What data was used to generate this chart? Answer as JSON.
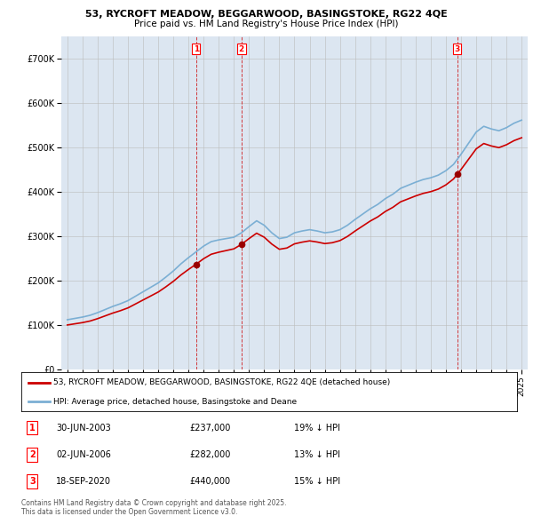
{
  "title1": "53, RYCROFT MEADOW, BEGGARWOOD, BASINGSTOKE, RG22 4QE",
  "title2": "Price paid vs. HM Land Registry's House Price Index (HPI)",
  "legend_line1": "53, RYCROFT MEADOW, BEGGARWOOD, BASINGSTOKE, RG22 4QE (detached house)",
  "legend_line2": "HPI: Average price, detached house, Basingstoke and Deane",
  "sale1_date": "30-JUN-2003",
  "sale1_price": "£237,000",
  "sale1_pct": "19% ↓ HPI",
  "sale2_date": "02-JUN-2006",
  "sale2_price": "£282,000",
  "sale2_pct": "13% ↓ HPI",
  "sale3_date": "18-SEP-2020",
  "sale3_price": "£440,000",
  "sale3_pct": "15% ↓ HPI",
  "footer1": "Contains HM Land Registry data © Crown copyright and database right 2025.",
  "footer2": "This data is licensed under the Open Government Licence v3.0.",
  "ylim_max": 750000,
  "red_color": "#cc0000",
  "blue_color": "#7bafd4",
  "bg_color": "#dce6f1",
  "plot_bg": "#ffffff",
  "grid_color": "#bbbbbb",
  "sale_marker_color": "#990000",
  "sale_vline_color": "#cc0000",
  "hpi_years": [
    1995.0,
    1995.5,
    1996.0,
    1996.5,
    1997.0,
    1997.5,
    1998.0,
    1998.5,
    1999.0,
    1999.5,
    2000.0,
    2000.5,
    2001.0,
    2001.5,
    2002.0,
    2002.5,
    2003.0,
    2003.5,
    2004.0,
    2004.5,
    2005.0,
    2005.5,
    2006.0,
    2006.5,
    2007.0,
    2007.5,
    2008.0,
    2008.5,
    2009.0,
    2009.5,
    2010.0,
    2010.5,
    2011.0,
    2011.5,
    2012.0,
    2012.5,
    2013.0,
    2013.5,
    2014.0,
    2014.5,
    2015.0,
    2015.5,
    2016.0,
    2016.5,
    2017.0,
    2017.5,
    2018.0,
    2018.5,
    2019.0,
    2019.5,
    2020.0,
    2020.5,
    2021.0,
    2021.5,
    2022.0,
    2022.5,
    2023.0,
    2023.5,
    2024.0,
    2024.5,
    2025.0
  ],
  "hpi_values": [
    112000,
    115000,
    118000,
    122000,
    128000,
    135000,
    142000,
    148000,
    155000,
    165000,
    175000,
    185000,
    195000,
    208000,
    222000,
    238000,
    252000,
    265000,
    278000,
    288000,
    292000,
    295000,
    298000,
    308000,
    322000,
    335000,
    325000,
    308000,
    295000,
    298000,
    308000,
    312000,
    315000,
    312000,
    308000,
    310000,
    315000,
    325000,
    338000,
    350000,
    362000,
    372000,
    385000,
    395000,
    408000,
    415000,
    422000,
    428000,
    432000,
    438000,
    448000,
    462000,
    485000,
    510000,
    535000,
    548000,
    542000,
    538000,
    545000,
    555000,
    562000
  ],
  "sale1_yr": 2003.5,
  "sale2_yr": 2006.5,
  "sale3_yr": 2020.75,
  "sale1_price_val": 237000,
  "sale2_price_val": 282000,
  "sale3_price_val": 440000
}
